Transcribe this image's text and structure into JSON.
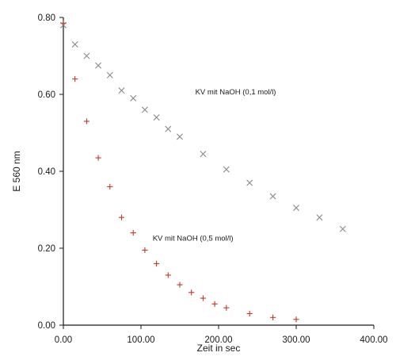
{
  "chart_data": {
    "type": "scatter",
    "title": "",
    "xlabel": "Zeit in sec",
    "ylabel": "E 560 nm",
    "xlim": [
      0,
      400
    ],
    "ylim": [
      0,
      0.8
    ],
    "x_ticks": [
      "0.00",
      "100.00",
      "200.00",
      "300.00",
      "400.00"
    ],
    "y_ticks": [
      "0.00",
      "0.20",
      "0.40",
      "0.60",
      "0.80"
    ],
    "x_tick_values": [
      0,
      100,
      200,
      300,
      400
    ],
    "y_tick_values": [
      0,
      0.2,
      0.4,
      0.6,
      0.8
    ],
    "grid": false,
    "series": [
      {
        "name": "KV mit NaOH (0,1 mol/l)",
        "marker": "x",
        "color": "#8a8a8a",
        "points": [
          [
            0,
            0.78
          ],
          [
            15,
            0.73
          ],
          [
            30,
            0.7
          ],
          [
            45,
            0.675
          ],
          [
            60,
            0.65
          ],
          [
            75,
            0.61
          ],
          [
            90,
            0.59
          ],
          [
            105,
            0.56
          ],
          [
            120,
            0.54
          ],
          [
            135,
            0.51
          ],
          [
            150,
            0.49
          ],
          [
            180,
            0.445
          ],
          [
            210,
            0.405
          ],
          [
            240,
            0.37
          ],
          [
            270,
            0.335
          ],
          [
            300,
            0.305
          ],
          [
            330,
            0.28
          ],
          [
            360,
            0.25
          ]
        ]
      },
      {
        "name": "KV mit NaOH (0,5 mol/l)",
        "marker": "+",
        "color": "#c0392b",
        "points": [
          [
            0,
            0.785
          ],
          [
            15,
            0.64
          ],
          [
            30,
            0.53
          ],
          [
            45,
            0.435
          ],
          [
            60,
            0.36
          ],
          [
            75,
            0.28
          ],
          [
            90,
            0.24
          ],
          [
            105,
            0.195
          ],
          [
            120,
            0.16
          ],
          [
            135,
            0.13
          ],
          [
            150,
            0.105
          ],
          [
            165,
            0.085
          ],
          [
            180,
            0.07
          ],
          [
            195,
            0.055
          ],
          [
            210,
            0.045
          ],
          [
            240,
            0.03
          ],
          [
            270,
            0.02
          ],
          [
            300,
            0.015
          ]
        ]
      }
    ],
    "annotations": [
      {
        "text": "KV mit NaOH (0,1 mol/l)",
        "x": 170,
        "y": 0.6
      },
      {
        "text": "KV mit NaOH (0,5 mol/l)",
        "x": 115,
        "y": 0.22
      }
    ]
  }
}
